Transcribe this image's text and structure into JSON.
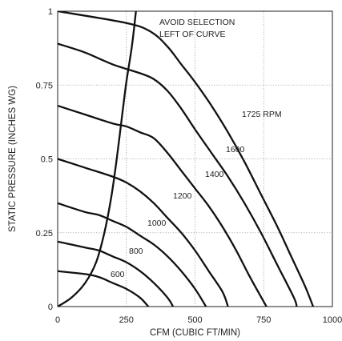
{
  "chart_data": {
    "type": "line",
    "title": "",
    "xlabel": "CFM (CUBIC FT/MIN)",
    "ylabel": "STATIC PRESSURE (INCHES WG)",
    "xlim": [
      0,
      1000
    ],
    "ylim": [
      0,
      1
    ],
    "x_ticks": [
      "0",
      "250",
      "500",
      "750",
      "1000"
    ],
    "y_ticks": [
      "0",
      "0.25",
      "0.5",
      "0.75",
      "1"
    ],
    "grid": true,
    "annotation_lines": [
      "AVOID SELECTION",
      "LEFT OF CURVE"
    ],
    "series": [
      {
        "name": "1725 RPM",
        "label": "1725 RPM",
        "points": [
          [
            0,
            1.0
          ],
          [
            250,
            0.96
          ],
          [
            340,
            0.93
          ],
          [
            400,
            0.88
          ],
          [
            450,
            0.82
          ],
          [
            500,
            0.76
          ],
          [
            560,
            0.68
          ],
          [
            620,
            0.59
          ],
          [
            680,
            0.49
          ],
          [
            740,
            0.38
          ],
          [
            800,
            0.27
          ],
          [
            850,
            0.17
          ],
          [
            900,
            0.07
          ],
          [
            930,
            0.0
          ]
        ]
      },
      {
        "name": "1600",
        "label": "1600",
        "points": [
          [
            0,
            0.89
          ],
          [
            100,
            0.86
          ],
          [
            200,
            0.82
          ],
          [
            300,
            0.79
          ],
          [
            350,
            0.77
          ],
          [
            400,
            0.73
          ],
          [
            450,
            0.67
          ],
          [
            500,
            0.6
          ],
          [
            560,
            0.52
          ],
          [
            620,
            0.44
          ],
          [
            680,
            0.35
          ],
          [
            740,
            0.25
          ],
          [
            800,
            0.14
          ],
          [
            860,
            0.03
          ],
          [
            870,
            0.0
          ]
        ]
      },
      {
        "name": "1400",
        "label": "1400",
        "points": [
          [
            0,
            0.68
          ],
          [
            100,
            0.65
          ],
          [
            200,
            0.62
          ],
          [
            250,
            0.61
          ],
          [
            300,
            0.59
          ],
          [
            350,
            0.57
          ],
          [
            400,
            0.52
          ],
          [
            450,
            0.46
          ],
          [
            500,
            0.4
          ],
          [
            550,
            0.34
          ],
          [
            600,
            0.27
          ],
          [
            650,
            0.19
          ],
          [
            700,
            0.1
          ],
          [
            760,
            0.0
          ]
        ]
      },
      {
        "name": "1200",
        "label": "1200",
        "points": [
          [
            0,
            0.5
          ],
          [
            100,
            0.47
          ],
          [
            200,
            0.44
          ],
          [
            250,
            0.42
          ],
          [
            300,
            0.39
          ],
          [
            350,
            0.35
          ],
          [
            400,
            0.3
          ],
          [
            450,
            0.25
          ],
          [
            500,
            0.19
          ],
          [
            550,
            0.12
          ],
          [
            600,
            0.05
          ],
          [
            620,
            0.0
          ]
        ]
      },
      {
        "name": "1000",
        "label": "1000",
        "points": [
          [
            0,
            0.35
          ],
          [
            100,
            0.32
          ],
          [
            150,
            0.31
          ],
          [
            200,
            0.29
          ],
          [
            250,
            0.27
          ],
          [
            300,
            0.24
          ],
          [
            350,
            0.21
          ],
          [
            400,
            0.17
          ],
          [
            450,
            0.12
          ],
          [
            500,
            0.06
          ],
          [
            540,
            0.0
          ]
        ]
      },
      {
        "name": "800",
        "label": "800",
        "points": [
          [
            0,
            0.22
          ],
          [
            100,
            0.2
          ],
          [
            150,
            0.19
          ],
          [
            200,
            0.17
          ],
          [
            250,
            0.15
          ],
          [
            300,
            0.12
          ],
          [
            350,
            0.08
          ],
          [
            400,
            0.03
          ],
          [
            420,
            0.0
          ]
        ]
      },
      {
        "name": "600",
        "label": "600",
        "points": [
          [
            0,
            0.12
          ],
          [
            100,
            0.11
          ],
          [
            150,
            0.1
          ],
          [
            200,
            0.08
          ],
          [
            250,
            0.06
          ],
          [
            300,
            0.03
          ],
          [
            330,
            0.0
          ]
        ]
      },
      {
        "name": "limit",
        "label": "",
        "points": [
          [
            0,
            0.0
          ],
          [
            50,
            0.03
          ],
          [
            100,
            0.08
          ],
          [
            140,
            0.15
          ],
          [
            170,
            0.25
          ],
          [
            195,
            0.37
          ],
          [
            215,
            0.5
          ],
          [
            235,
            0.65
          ],
          [
            250,
            0.76
          ],
          [
            270,
            0.88
          ],
          [
            285,
            1.0
          ]
        ]
      }
    ]
  }
}
